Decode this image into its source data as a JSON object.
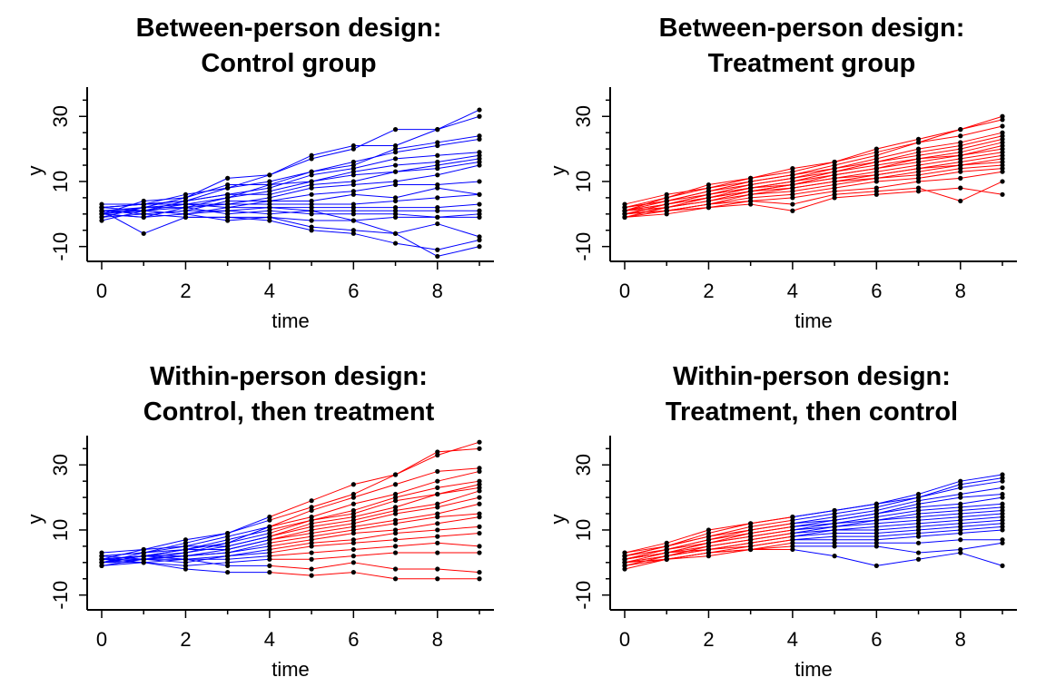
{
  "chart_data": [
    {
      "type": "line",
      "title_line1": "Between-person design:",
      "title_line2": "Control group",
      "xlabel": "time",
      "ylabel": "y",
      "xlim": [
        0,
        9
      ],
      "ylim": [
        -14,
        39
      ],
      "xticks": [
        "0",
        "2",
        "4",
        "6",
        "8"
      ],
      "yticks": [
        "-10",
        "10",
        "30"
      ],
      "grid": false,
      "x": [
        0,
        1,
        2,
        3,
        4,
        5,
        6,
        7,
        8,
        9
      ],
      "series_colors": [
        "#0000ff"
      ],
      "switch_time": null,
      "series": [
        {
          "values": [
            2,
            3,
            4,
            8,
            12,
            17,
            20,
            26,
            26,
            32
          ]
        },
        {
          "values": [
            1,
            2,
            5,
            11,
            12,
            18,
            21,
            21,
            26,
            30
          ]
        },
        {
          "values": [
            2,
            3,
            6,
            8,
            10,
            13,
            15,
            20,
            22,
            24
          ]
        },
        {
          "values": [
            0,
            4,
            5,
            9,
            9,
            13,
            16,
            19,
            21,
            23
          ]
        },
        {
          "values": [
            3,
            3,
            4,
            6,
            8,
            12,
            14,
            17,
            18,
            19
          ]
        },
        {
          "values": [
            1,
            1,
            3,
            5,
            7,
            10,
            13,
            15,
            16,
            18
          ]
        },
        {
          "values": [
            -1,
            2,
            2,
            5,
            9,
            10,
            12,
            13,
            15,
            17
          ]
        },
        {
          "values": [
            2,
            1,
            4,
            6,
            6,
            9,
            10,
            13,
            14,
            16
          ]
        },
        {
          "values": [
            0,
            2,
            3,
            3,
            5,
            8,
            9,
            10,
            12,
            15
          ]
        },
        {
          "values": [
            1,
            0,
            1,
            4,
            4,
            6,
            7,
            9,
            9,
            10
          ]
        },
        {
          "values": [
            2,
            3,
            3,
            2,
            4,
            4,
            6,
            5,
            8,
            6
          ]
        },
        {
          "values": [
            0,
            -1,
            2,
            3,
            3,
            3,
            3,
            4,
            5,
            6
          ]
        },
        {
          "values": [
            1,
            1,
            0,
            2,
            2,
            2,
            2,
            2,
            2,
            3
          ]
        },
        {
          "values": [
            -1,
            0,
            1,
            1,
            0,
            1,
            1,
            1,
            1,
            1
          ]
        },
        {
          "values": [
            0,
            1,
            2,
            0,
            1,
            0,
            0,
            0,
            -1,
            0
          ]
        },
        {
          "values": [
            1,
            0,
            -1,
            -1,
            -1,
            -2,
            -2,
            -1,
            -1,
            -1
          ]
        },
        {
          "values": [
            0,
            -1,
            0,
            -2,
            -1,
            -4,
            -5,
            -6,
            -3,
            -7
          ]
        },
        {
          "values": [
            1,
            -6,
            -1,
            -1,
            -2,
            -5,
            -6,
            -9,
            -11,
            -8
          ]
        },
        {
          "values": [
            -2,
            1,
            0,
            1,
            2,
            1,
            -2,
            -6,
            -13,
            -10
          ]
        }
      ]
    },
    {
      "type": "line",
      "title_line1": "Between-person design:",
      "title_line2": "Treatment group",
      "xlabel": "time",
      "ylabel": "y",
      "xlim": [
        0,
        9
      ],
      "ylim": [
        -14,
        39
      ],
      "xticks": [
        "0",
        "2",
        "4",
        "6",
        "8"
      ],
      "yticks": [
        "-10",
        "10",
        "30"
      ],
      "grid": false,
      "x": [
        0,
        1,
        2,
        3,
        4,
        5,
        6,
        7,
        8,
        9
      ],
      "series_colors": [
        "#ff0000"
      ],
      "switch_time": null,
      "series": [
        {
          "values": [
            3,
            6,
            8,
            11,
            14,
            16,
            20,
            23,
            26,
            30
          ]
        },
        {
          "values": [
            2,
            5,
            9,
            11,
            13,
            16,
            19,
            22,
            26,
            29
          ]
        },
        {
          "values": [
            1,
            5,
            8,
            10,
            12,
            15,
            18,
            22,
            24,
            27
          ]
        },
        {
          "values": [
            2,
            4,
            7,
            10,
            12,
            14,
            17,
            20,
            22,
            25
          ]
        },
        {
          "values": [
            1,
            4,
            7,
            9,
            11,
            14,
            16,
            19,
            21,
            24
          ]
        },
        {
          "values": [
            0,
            3,
            6,
            9,
            11,
            13,
            16,
            18,
            20,
            23
          ]
        },
        {
          "values": [
            2,
            4,
            6,
            8,
            10,
            13,
            15,
            17,
            19,
            22
          ]
        },
        {
          "values": [
            1,
            3,
            6,
            8,
            10,
            12,
            14,
            17,
            18,
            21
          ]
        },
        {
          "values": [
            0,
            3,
            5,
            8,
            9,
            12,
            14,
            16,
            18,
            20
          ]
        },
        {
          "values": [
            1,
            3,
            5,
            7,
            9,
            11,
            13,
            15,
            17,
            19
          ]
        },
        {
          "values": [
            0,
            2,
            5,
            7,
            9,
            11,
            12,
            14,
            16,
            18
          ]
        },
        {
          "values": [
            1,
            2,
            4,
            7,
            8,
            10,
            12,
            14,
            15,
            17
          ]
        },
        {
          "values": [
            -1,
            2,
            4,
            6,
            8,
            10,
            11,
            13,
            15,
            16
          ]
        },
        {
          "values": [
            0,
            1,
            3,
            6,
            7,
            9,
            11,
            12,
            14,
            15
          ]
        },
        {
          "values": [
            0,
            1,
            3,
            5,
            6,
            8,
            10,
            11,
            13,
            14
          ]
        },
        {
          "values": [
            -1,
            1,
            3,
            4,
            5,
            7,
            8,
            10,
            11,
            13
          ]
        },
        {
          "values": [
            -1,
            0,
            2,
            4,
            3,
            6,
            7,
            8,
            4,
            10
          ]
        },
        {
          "values": [
            0,
            1,
            2,
            3,
            1,
            5,
            6,
            7,
            8,
            6
          ]
        }
      ]
    },
    {
      "type": "line",
      "title_line1": "Within-person design:",
      "title_line2": "Control, then treatment",
      "xlabel": "time",
      "ylabel": "y",
      "xlim": [
        0,
        9
      ],
      "ylim": [
        -14,
        39
      ],
      "xticks": [
        "0",
        "2",
        "4",
        "6",
        "8"
      ],
      "yticks": [
        "-10",
        "10",
        "30"
      ],
      "grid": false,
      "x": [
        0,
        1,
        2,
        3,
        4,
        5,
        6,
        7,
        8,
        9
      ],
      "series_colors": [
        "#0000ff",
        "#ff0000"
      ],
      "switch_time": 4,
      "series": [
        {
          "values": [
            2,
            3,
            6,
            9,
            14,
            19,
            24,
            27,
            33,
            37
          ]
        },
        {
          "values": [
            1,
            4,
            7,
            9,
            13,
            17,
            21,
            27,
            34,
            35
          ]
        },
        {
          "values": [
            3,
            4,
            5,
            8,
            11,
            16,
            20,
            24,
            28,
            29
          ]
        },
        {
          "values": [
            0,
            2,
            4,
            6,
            11,
            14,
            18,
            21,
            25,
            28
          ]
        },
        {
          "values": [
            2,
            3,
            4,
            7,
            10,
            13,
            16,
            20,
            23,
            25
          ]
        },
        {
          "values": [
            1,
            2,
            3,
            6,
            9,
            13,
            15,
            19,
            21,
            24
          ]
        },
        {
          "values": [
            0,
            3,
            5,
            5,
            8,
            12,
            14,
            17,
            21,
            23
          ]
        },
        {
          "values": [
            2,
            1,
            3,
            5,
            8,
            11,
            13,
            16,
            18,
            22
          ]
        },
        {
          "values": [
            1,
            2,
            4,
            4,
            7,
            10,
            12,
            15,
            17,
            20
          ]
        },
        {
          "values": [
            0,
            1,
            2,
            4,
            7,
            9,
            11,
            13,
            15,
            18
          ]
        },
        {
          "values": [
            1,
            2,
            2,
            3,
            6,
            8,
            10,
            12,
            14,
            15
          ]
        },
        {
          "values": [
            -1,
            1,
            2,
            3,
            5,
            7,
            9,
            10,
            12,
            14
          ]
        },
        {
          "values": [
            0,
            0,
            1,
            2,
            4,
            6,
            7,
            9,
            10,
            11
          ]
        },
        {
          "values": [
            1,
            1,
            0,
            2,
            3,
            5,
            6,
            7,
            8,
            9
          ]
        },
        {
          "values": [
            0,
            2,
            1,
            1,
            2,
            3,
            4,
            5,
            6,
            5
          ]
        },
        {
          "values": [
            1,
            0,
            -1,
            0,
            1,
            1,
            2,
            3,
            3,
            3
          ]
        },
        {
          "values": [
            0,
            1,
            1,
            -1,
            -1,
            -2,
            0,
            -2,
            -2,
            -3
          ]
        },
        {
          "values": [
            -1,
            0,
            -2,
            -3,
            -3,
            -4,
            -3,
            -5,
            -5,
            -5
          ]
        }
      ]
    },
    {
      "type": "line",
      "title_line1": "Within-person design:",
      "title_line2": "Treatment, then control",
      "xlabel": "time",
      "ylabel": "y",
      "xlim": [
        0,
        9
      ],
      "ylim": [
        -14,
        39
      ],
      "xticks": [
        "0",
        "2",
        "4",
        "6",
        "8"
      ],
      "yticks": [
        "-10",
        "10",
        "30"
      ],
      "grid": false,
      "x": [
        0,
        1,
        2,
        3,
        4,
        5,
        6,
        7,
        8,
        9
      ],
      "series_colors": [
        "#ff0000",
        "#0000ff"
      ],
      "switch_time": 4,
      "series": [
        {
          "values": [
            3,
            6,
            10,
            12,
            14,
            16,
            18,
            21,
            25,
            27
          ]
        },
        {
          "values": [
            2,
            5,
            9,
            12,
            14,
            16,
            18,
            20,
            24,
            26
          ]
        },
        {
          "values": [
            3,
            5,
            8,
            11,
            13,
            15,
            17,
            20,
            23,
            25
          ]
        },
        {
          "values": [
            2,
            5,
            8,
            10,
            12,
            14,
            16,
            19,
            21,
            23
          ]
        },
        {
          "values": [
            1,
            4,
            7,
            10,
            12,
            13,
            15,
            18,
            20,
            21
          ]
        },
        {
          "values": [
            2,
            4,
            7,
            9,
            11,
            13,
            15,
            17,
            18,
            20
          ]
        },
        {
          "values": [
            1,
            4,
            6,
            9,
            11,
            12,
            14,
            16,
            17,
            18
          ]
        },
        {
          "values": [
            1,
            3,
            6,
            8,
            10,
            12,
            13,
            15,
            16,
            17
          ]
        },
        {
          "values": [
            0,
            3,
            6,
            8,
            10,
            11,
            13,
            14,
            15,
            16
          ]
        },
        {
          "values": [
            1,
            3,
            5,
            7,
            9,
            11,
            12,
            13,
            14,
            15
          ]
        },
        {
          "values": [
            0,
            2,
            5,
            7,
            9,
            10,
            11,
            12,
            13,
            14
          ]
        },
        {
          "values": [
            1,
            3,
            4,
            6,
            8,
            10,
            10,
            11,
            12,
            13
          ]
        },
        {
          "values": [
            0,
            2,
            4,
            6,
            8,
            9,
            9,
            10,
            11,
            12
          ]
        },
        {
          "values": [
            -1,
            2,
            4,
            5,
            7,
            8,
            8,
            9,
            10,
            11
          ]
        },
        {
          "values": [
            0,
            1,
            3,
            5,
            7,
            7,
            7,
            8,
            9,
            10
          ]
        },
        {
          "values": [
            -1,
            1,
            3,
            4,
            6,
            6,
            6,
            6,
            7,
            7
          ]
        },
        {
          "values": [
            0,
            1,
            3,
            4,
            5,
            5,
            5,
            3,
            4,
            6
          ]
        },
        {
          "values": [
            -2,
            1,
            2,
            4,
            4,
            2,
            -1,
            1,
            3,
            -1
          ]
        }
      ]
    }
  ]
}
